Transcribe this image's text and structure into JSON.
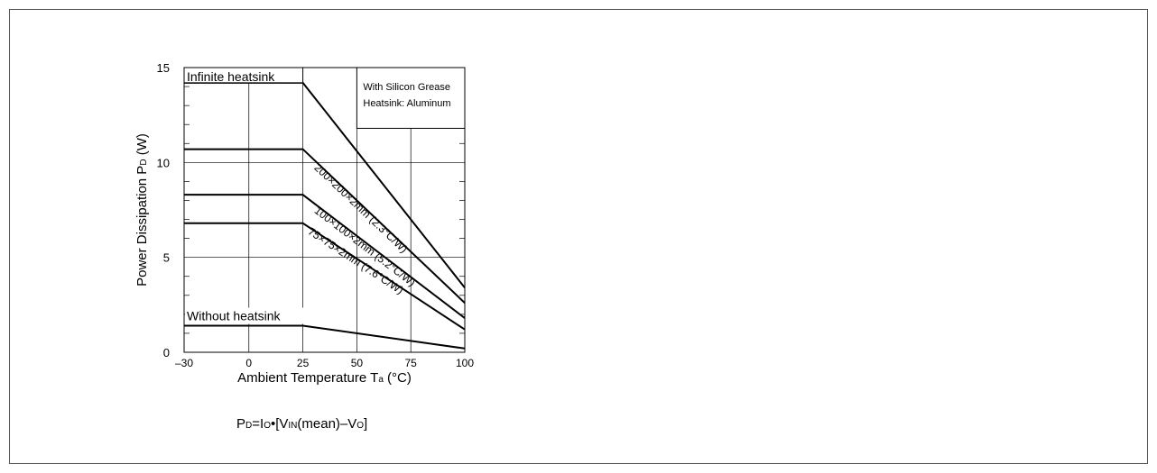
{
  "chart_data": {
    "type": "line",
    "xlabel_main": "Ambient Temperature T",
    "xlabel_sub": "a",
    "xlabel_unit": " (°C)",
    "ylabel_main": "Power Dissipation P",
    "ylabel_sub": "D",
    "ylabel_unit": " (W)",
    "xlim": [
      -30,
      100
    ],
    "ylim": [
      0,
      15
    ],
    "x_ticks": [
      {
        "value": -30,
        "label": "–30"
      },
      {
        "value": 0,
        "label": "0"
      },
      {
        "value": 25,
        "label": "25"
      },
      {
        "value": 50,
        "label": "50"
      },
      {
        "value": 75,
        "label": "75"
      },
      {
        "value": 100,
        "label": "100"
      }
    ],
    "y_ticks": [
      {
        "value": 0,
        "label": "0"
      },
      {
        "value": 5,
        "label": "5"
      },
      {
        "value": 10,
        "label": "10"
      },
      {
        "value": 15,
        "label": "15"
      }
    ],
    "grid": true,
    "series": [
      {
        "name": "Infinite heatsink",
        "x": [
          -30,
          25,
          100
        ],
        "y": [
          14.2,
          14.2,
          3.4
        ]
      },
      {
        "name": "200×200×2mm (2.3°C/W)",
        "x": [
          -30,
          25,
          100
        ],
        "y": [
          10.7,
          10.7,
          2.6
        ]
      },
      {
        "name": "100×100×2mm (5.2°C/W)",
        "x": [
          -30,
          25,
          100
        ],
        "y": [
          8.3,
          8.3,
          1.8
        ]
      },
      {
        "name": "75×75×2mm (7.6°C/W)",
        "x": [
          -30,
          25,
          100
        ],
        "y": [
          6.8,
          6.8,
          1.2
        ]
      },
      {
        "name": "Without heatsink",
        "x": [
          -30,
          25,
          100
        ],
        "y": [
          1.4,
          1.4,
          0.2
        ]
      }
    ],
    "legend_box": [
      "With Silicon Grease",
      "Heatsink: Aluminum"
    ]
  },
  "formula": {
    "p": "P",
    "p_sub": "D",
    "eq_i": "=I",
    "i_sub": "O",
    "bullet": "•[V",
    "v_sub": "IN",
    "mean": "(mean)–V",
    "vo_sub": "O",
    "close": "]"
  }
}
